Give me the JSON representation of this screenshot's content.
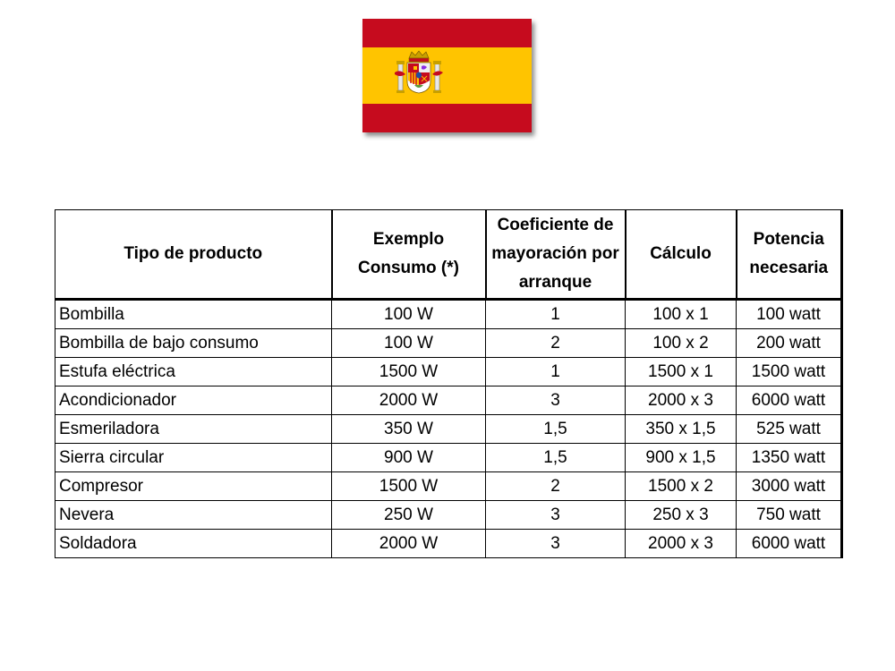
{
  "flag": {
    "colors": {
      "red": "#c60b1e",
      "yellow": "#ffc400"
    }
  },
  "table": {
    "headers": [
      "Tipo de producto",
      "Exemplo Consumo (*)",
      "Coeficiente de mayoración por arranque",
      "Cálculo",
      "Potencia necesaria"
    ],
    "rows": [
      [
        "Bombilla",
        "100 W",
        "1",
        "100 x 1",
        "100 watt"
      ],
      [
        "Bombilla de bajo consumo",
        "100 W",
        "2",
        "100 x 2",
        "200 watt"
      ],
      [
        "Estufa eléctrica",
        "1500 W",
        "1",
        "1500 x 1",
        "1500 watt"
      ],
      [
        "Acondicionador",
        "2000 W",
        "3",
        "2000 x 3",
        "6000 watt"
      ],
      [
        "Esmeriladora",
        "350 W",
        "1,5",
        "350 x 1,5",
        "525 watt"
      ],
      [
        "Sierra circular",
        "900 W",
        "1,5",
        "900 x 1,5",
        "1350 watt"
      ],
      [
        "Compresor",
        "1500 W",
        "2",
        "1500 x 2",
        "3000 watt"
      ],
      [
        "Nevera",
        "250 W",
        "3",
        "250 x 3",
        "750 watt"
      ],
      [
        "Soldadora",
        "2000 W",
        "3",
        "2000 x 3",
        "6000 watt"
      ]
    ]
  }
}
